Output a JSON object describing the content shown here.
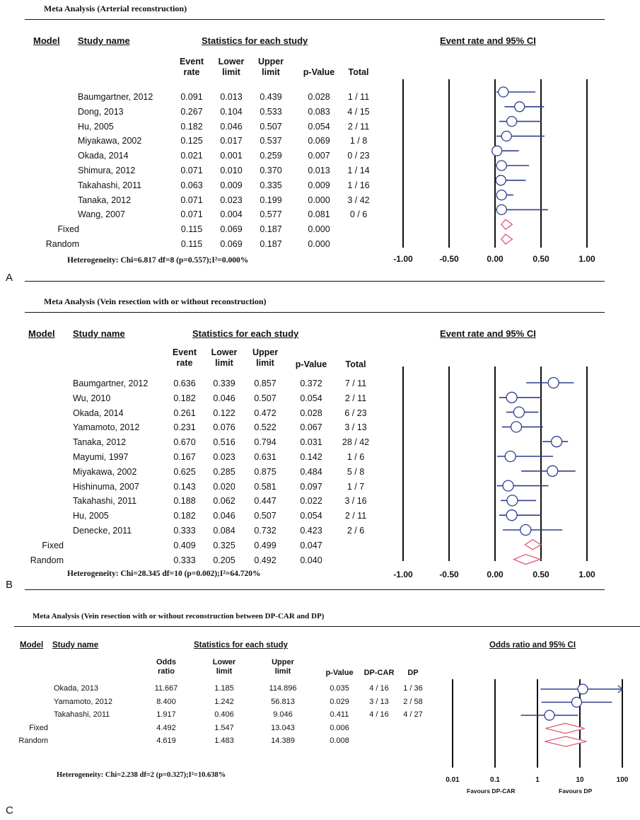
{
  "panels": [
    {
      "letter": "A",
      "title": "Meta Analysis (Arterial reconstruction)",
      "headers": {
        "model": "Model",
        "study": "Study name",
        "stats": "Statistics for each study",
        "plot": "Event rate and 95% CI",
        "cols": [
          "Event rate",
          "Lower limit",
          "Upper limit",
          "p-Value",
          "Total"
        ]
      },
      "rows": [
        {
          "model": "",
          "study": "Baumgartner, 2012",
          "est": "0.091",
          "lo": "0.013",
          "hi": "0.439",
          "p": "0.028",
          "total": "1 / 11"
        },
        {
          "model": "",
          "study": "Dong, 2013",
          "est": "0.267",
          "lo": "0.104",
          "hi": "0.533",
          "p": "0.083",
          "total": "4 / 15"
        },
        {
          "model": "",
          "study": "Hu, 2005",
          "est": "0.182",
          "lo": "0.046",
          "hi": "0.507",
          "p": "0.054",
          "total": "2 / 11"
        },
        {
          "model": "",
          "study": "Miyakawa, 2002",
          "est": "0.125",
          "lo": "0.017",
          "hi": "0.537",
          "p": "0.069",
          "total": "1 / 8"
        },
        {
          "model": "",
          "study": "Okada, 2014",
          "est": "0.021",
          "lo": "0.001",
          "hi": "0.259",
          "p": "0.007",
          "total": "0 / 23"
        },
        {
          "model": "",
          "study": "Shimura, 2012",
          "est": "0.071",
          "lo": "0.010",
          "hi": "0.370",
          "p": "0.013",
          "total": "1 / 14"
        },
        {
          "model": "",
          "study": "Takahashi, 2011",
          "est": "0.063",
          "lo": "0.009",
          "hi": "0.335",
          "p": "0.009",
          "total": "1 / 16"
        },
        {
          "model": "",
          "study": "Tanaka, 2012",
          "est": "0.071",
          "lo": "0.023",
          "hi": "0.199",
          "p": "0.000",
          "total": "3 / 42"
        },
        {
          "model": "",
          "study": "Wang, 2007",
          "est": "0.071",
          "lo": "0.004",
          "hi": "0.577",
          "p": "0.081",
          "total": "0 / 6"
        },
        {
          "model": "Fixed",
          "study": "",
          "est": "0.115",
          "lo": "0.069",
          "hi": "0.187",
          "p": "0.000",
          "total": ""
        },
        {
          "model": "Random",
          "study": "",
          "est": "0.115",
          "lo": "0.069",
          "hi": "0.187",
          "p": "0.000",
          "total": ""
        }
      ],
      "heterogeneity": "Heterogeneity: Chi=6.817  df=8 (p=0.557);I²=0.000%"
    },
    {
      "letter": "B",
      "title": "Meta Analysis (Vein resection with or without reconstruction)",
      "headers": {
        "model": "Model",
        "study": "Study name",
        "stats": "Statistics for each study",
        "plot": "Event rate and 95% CI",
        "cols": [
          "Event rate",
          "Lower limit",
          "Upper limit",
          "p-Value",
          "Total"
        ]
      },
      "rows": [
        {
          "model": "",
          "study": "Baumgartner, 2012",
          "est": "0.636",
          "lo": "0.339",
          "hi": "0.857",
          "p": "0.372",
          "total": "7 / 11"
        },
        {
          "model": "",
          "study": "Wu, 2010",
          "est": "0.182",
          "lo": "0.046",
          "hi": "0.507",
          "p": "0.054",
          "total": "2 / 11"
        },
        {
          "model": "",
          "study": "Okada, 2014",
          "est": "0.261",
          "lo": "0.122",
          "hi": "0.472",
          "p": "0.028",
          "total": "6 / 23"
        },
        {
          "model": "",
          "study": "Yamamoto, 2012",
          "est": "0.231",
          "lo": "0.076",
          "hi": "0.522",
          "p": "0.067",
          "total": "3 / 13"
        },
        {
          "model": "",
          "study": "Tanaka, 2012",
          "est": "0.670",
          "lo": "0.516",
          "hi": "0.794",
          "p": "0.031",
          "total": "28 / 42"
        },
        {
          "model": "",
          "study": "Mayumi, 1997",
          "est": "0.167",
          "lo": "0.023",
          "hi": "0.631",
          "p": "0.142",
          "total": "1 / 6"
        },
        {
          "model": "",
          "study": "Miyakawa, 2002",
          "est": "0.625",
          "lo": "0.285",
          "hi": "0.875",
          "p": "0.484",
          "total": "5 / 8"
        },
        {
          "model": "",
          "study": "Hishinuma, 2007",
          "est": "0.143",
          "lo": "0.020",
          "hi": "0.581",
          "p": "0.097",
          "total": "1 / 7"
        },
        {
          "model": "",
          "study": "Takahashi, 2011",
          "est": "0.188",
          "lo": "0.062",
          "hi": "0.447",
          "p": "0.022",
          "total": "3 / 16"
        },
        {
          "model": "",
          "study": "Hu, 2005",
          "est": "0.182",
          "lo": "0.046",
          "hi": "0.507",
          "p": "0.054",
          "total": "2 / 11"
        },
        {
          "model": "",
          "study": "Denecke, 2011",
          "est": "0.333",
          "lo": "0.084",
          "hi": "0.732",
          "p": "0.423",
          "total": "2 / 6"
        },
        {
          "model": "Fixed",
          "study": "",
          "est": "0.409",
          "lo": "0.325",
          "hi": "0.499",
          "p": "0.047",
          "total": ""
        },
        {
          "model": "Random",
          "study": "",
          "est": "0.333",
          "lo": "0.205",
          "hi": "0.492",
          "p": "0.040",
          "total": ""
        }
      ],
      "heterogeneity": "Heterogeneity: Chi=28.345  df=10 (p=0.002);I²=64.720%"
    },
    {
      "letter": "C",
      "title": "Meta Analysis (Vein resection with or without reconstruction between DP-CAR and DP)",
      "headers": {
        "model": "Model",
        "study": "Study name",
        "stats": "Statistics for each study",
        "plot": "Odds ratio and 95% CI",
        "cols": [
          "Odds ratio",
          "Lower limit",
          "Upper limit",
          "p-Value",
          "DP-CAR",
          "DP"
        ]
      },
      "rows": [
        {
          "model": "",
          "study": "Okada, 2013",
          "est": "11.667",
          "lo": "1.185",
          "hi": "114.896",
          "p": "0.035",
          "a": "4 / 16",
          "b": "1 / 36"
        },
        {
          "model": "",
          "study": "Yamamoto, 2012",
          "est": "8.400",
          "lo": "1.242",
          "hi": "56.813",
          "p": "0.029",
          "a": "3 / 13",
          "b": "2 / 58"
        },
        {
          "model": "",
          "study": "Takahashi, 2011",
          "est": "1.917",
          "lo": "0.406",
          "hi": "9.046",
          "p": "0.411",
          "a": "4 / 16",
          "b": "4 / 27"
        },
        {
          "model": "Fixed",
          "study": "",
          "est": "4.492",
          "lo": "1.547",
          "hi": "13.043",
          "p": "0.006",
          "a": "",
          "b": ""
        },
        {
          "model": "Random",
          "study": "",
          "est": "4.619",
          "lo": "1.483",
          "hi": "14.389",
          "p": "0.008",
          "a": "",
          "b": ""
        }
      ],
      "heterogeneity": "Heterogeneity: Chi=2.238  df=2 (p=0.327);I²=10.638%",
      "favours_left": "Favours DP-CAR",
      "favours_right": "Favours DP"
    }
  ],
  "chart_data": [
    {
      "type": "forest",
      "xlim": [
        -1,
        1
      ],
      "ticks": [
        "-1.00",
        "-0.50",
        "0.00",
        "0.50",
        "1.00"
      ],
      "tick_values": [
        -1,
        -0.5,
        0,
        0.5,
        1
      ],
      "scale": "linear",
      "studies": [
        {
          "label": "Baumgartner, 2012",
          "est": 0.091,
          "lo": 0.013,
          "hi": 0.439
        },
        {
          "label": "Dong, 2013",
          "est": 0.267,
          "lo": 0.104,
          "hi": 0.533
        },
        {
          "label": "Hu, 2005",
          "est": 0.182,
          "lo": 0.046,
          "hi": 0.507
        },
        {
          "label": "Miyakawa, 2002",
          "est": 0.125,
          "lo": 0.017,
          "hi": 0.537
        },
        {
          "label": "Okada, 2014",
          "est": 0.021,
          "lo": 0.001,
          "hi": 0.259
        },
        {
          "label": "Shimura, 2012",
          "est": 0.071,
          "lo": 0.01,
          "hi": 0.37
        },
        {
          "label": "Takahashi, 2011",
          "est": 0.063,
          "lo": 0.009,
          "hi": 0.335
        },
        {
          "label": "Tanaka, 2012",
          "est": 0.071,
          "lo": 0.023,
          "hi": 0.199
        },
        {
          "label": "Wang, 2007",
          "est": 0.071,
          "lo": 0.004,
          "hi": 0.577
        }
      ],
      "pooled": [
        {
          "label": "Fixed",
          "est": 0.115,
          "lo": 0.069,
          "hi": 0.187
        },
        {
          "label": "Random",
          "est": 0.115,
          "lo": 0.069,
          "hi": 0.187
        }
      ],
      "colors": {
        "ci": "#2f3e8e",
        "marker": "#2f3e8e",
        "diamond": "#e0627e"
      }
    },
    {
      "type": "forest",
      "xlim": [
        -1,
        1
      ],
      "ticks": [
        "-1.00",
        "-0.50",
        "0.00",
        "0.50",
        "1.00"
      ],
      "tick_values": [
        -1,
        -0.5,
        0,
        0.5,
        1
      ],
      "scale": "linear",
      "studies": [
        {
          "label": "Baumgartner, 2012",
          "est": 0.636,
          "lo": 0.339,
          "hi": 0.857
        },
        {
          "label": "Wu, 2010",
          "est": 0.182,
          "lo": 0.046,
          "hi": 0.507
        },
        {
          "label": "Okada, 2014",
          "est": 0.261,
          "lo": 0.122,
          "hi": 0.472
        },
        {
          "label": "Yamamoto, 2012",
          "est": 0.231,
          "lo": 0.076,
          "hi": 0.522
        },
        {
          "label": "Tanaka, 2012",
          "est": 0.67,
          "lo": 0.516,
          "hi": 0.794
        },
        {
          "label": "Mayumi, 1997",
          "est": 0.167,
          "lo": 0.023,
          "hi": 0.631
        },
        {
          "label": "Miyakawa, 2002",
          "est": 0.625,
          "lo": 0.285,
          "hi": 0.875
        },
        {
          "label": "Hishinuma, 2007",
          "est": 0.143,
          "lo": 0.02,
          "hi": 0.581
        },
        {
          "label": "Takahashi, 2011",
          "est": 0.188,
          "lo": 0.062,
          "hi": 0.447
        },
        {
          "label": "Hu, 2005",
          "est": 0.182,
          "lo": 0.046,
          "hi": 0.507
        },
        {
          "label": "Denecke, 2011",
          "est": 0.333,
          "lo": 0.084,
          "hi": 0.732
        }
      ],
      "pooled": [
        {
          "label": "Fixed",
          "est": 0.409,
          "lo": 0.325,
          "hi": 0.499
        },
        {
          "label": "Random",
          "est": 0.333,
          "lo": 0.205,
          "hi": 0.492
        }
      ],
      "colors": {
        "ci": "#2f3e8e",
        "marker": "#2f3e8e",
        "diamond": "#e0627e"
      }
    },
    {
      "type": "forest",
      "xlim": [
        0.01,
        100
      ],
      "ticks": [
        "0.01",
        "0.1",
        "1",
        "10",
        "100"
      ],
      "tick_values": [
        0.01,
        0.1,
        1,
        10,
        100
      ],
      "scale": "log",
      "studies": [
        {
          "label": "Okada, 2013",
          "est": 11.667,
          "lo": 1.185,
          "hi": 114.896
        },
        {
          "label": "Yamamoto, 2012",
          "est": 8.4,
          "lo": 1.242,
          "hi": 56.813
        },
        {
          "label": "Takahashi, 2011",
          "est": 1.917,
          "lo": 0.406,
          "hi": 9.046
        }
      ],
      "pooled": [
        {
          "label": "Fixed",
          "est": 4.492,
          "lo": 1.547,
          "hi": 13.043
        },
        {
          "label": "Random",
          "est": 4.619,
          "lo": 1.483,
          "hi": 14.389
        }
      ],
      "colors": {
        "ci": "#2f3e8e",
        "marker": "#2f3e8e",
        "diamond": "#e0627e"
      }
    }
  ]
}
